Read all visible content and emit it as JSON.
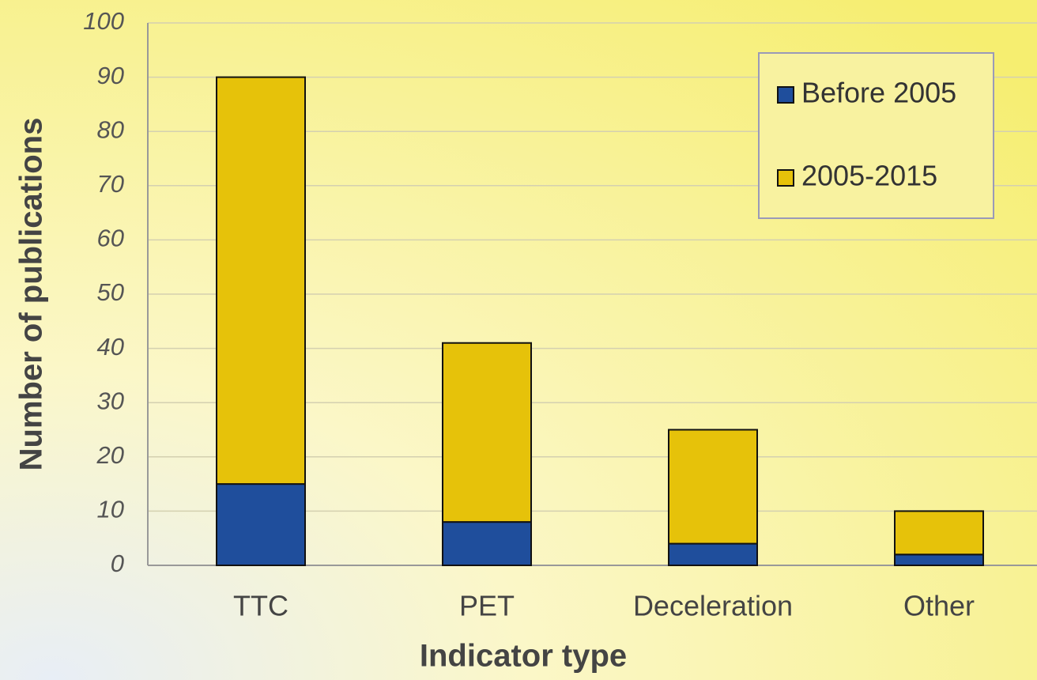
{
  "chart_data": {
    "type": "stacked_bar",
    "x_label": "Indicator type",
    "y_label": "Number of publications",
    "categories": [
      "TTC",
      "PET",
      "Deceleration",
      "Other"
    ],
    "series": [
      {
        "name": "Before 2005",
        "color": "#1f4e9c",
        "values": [
          15,
          8,
          4,
          2
        ]
      },
      {
        "name": "2005-2015",
        "color": "#e6c20a",
        "values": [
          75,
          33,
          21,
          8
        ]
      }
    ],
    "ylim": [
      0,
      100
    ],
    "yticks": [
      0,
      10,
      20,
      30,
      40,
      50,
      60,
      70,
      80,
      90,
      100
    ],
    "grid": true,
    "legend": "upper right"
  }
}
